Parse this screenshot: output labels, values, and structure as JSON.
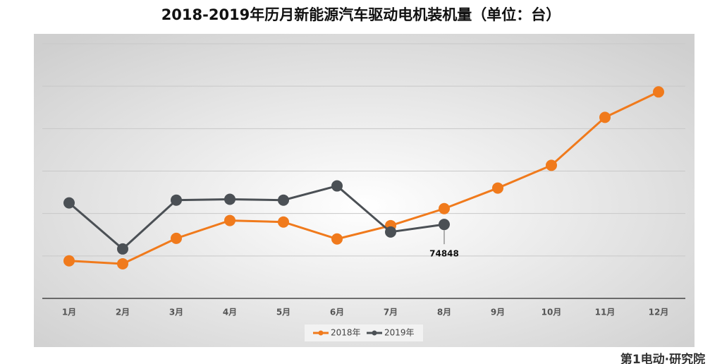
{
  "chart_data": {
    "type": "line",
    "title": "2018-2019年历月新能源汽车驱动电机装机量（单位：台）",
    "categories": [
      "1月",
      "2月",
      "3月",
      "4月",
      "5月",
      "6月",
      "7月",
      "8月",
      "9月",
      "10月",
      "11月",
      "12月"
    ],
    "series": [
      {
        "name": "2018年",
        "color": "#f07a1c",
        "values": [
          57700,
          56300,
          68300,
          76700,
          76000,
          68000,
          74300,
          82300,
          92000,
          102700,
          125300,
          137300
        ]
      },
      {
        "name": "2019年",
        "color": "#4b5055",
        "values": [
          85000,
          63300,
          86300,
          86700,
          86300,
          93000,
          71300,
          74848,
          null,
          null,
          null,
          null
        ]
      }
    ],
    "data_labels": [
      {
        "series": 1,
        "index": 7
      }
    ],
    "ylim": [
      40000,
      160000
    ],
    "yticks": [
      40000,
      60000,
      80000,
      100000,
      120000,
      140000,
      160000
    ],
    "grid": true,
    "legend": "bottom",
    "logo": "第1电动·研究院"
  }
}
